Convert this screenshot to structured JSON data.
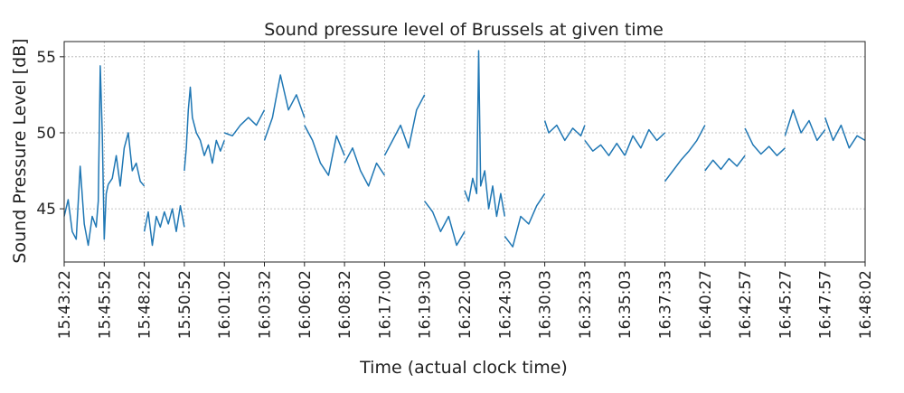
{
  "chart_data": {
    "type": "line",
    "title": "Sound pressure level of Brussels at given time",
    "xlabel": "Time (actual clock time)",
    "ylabel": "Sound Pressure Level [dB]",
    "ylim": [
      41.5,
      56
    ],
    "yticks": [
      45,
      50,
      55
    ],
    "grid": true,
    "line_color": "#1f77b4",
    "x_tick_labels": [
      "15:43:22",
      "15:45:52",
      "15:48:22",
      "15:50:52",
      "16:01:02",
      "16:03:32",
      "16:06:02",
      "16:08:32",
      "16:17:00",
      "16:19:30",
      "16:22:00",
      "16:24:30",
      "16:30:03",
      "16:32:33",
      "16:35:03",
      "16:37:33",
      "16:40:27",
      "16:42:57",
      "16:45:27",
      "16:47:57",
      "16:48:02"
    ],
    "segments": [
      {
        "x": [
          0.0,
          0.1,
          0.2,
          0.3,
          0.4,
          0.5,
          0.6,
          0.7,
          0.8,
          0.85,
          0.9,
          0.95,
          1.0,
          1.05,
          1.1
        ],
        "y": [
          44.5,
          45.6,
          43.5,
          43.0,
          47.8,
          44.0,
          42.6,
          44.5,
          43.8,
          45.5,
          54.4,
          50.0,
          43.0,
          46.0,
          46.6
        ]
      },
      {
        "x": [
          1.1,
          1.2,
          1.3,
          1.4,
          1.5,
          1.6,
          1.7,
          1.8,
          1.9,
          2.0
        ],
        "y": [
          46.6,
          47.0,
          48.5,
          46.5,
          49.0,
          50.0,
          47.5,
          48.0,
          46.8,
          46.5
        ]
      },
      {
        "x": [
          2.0,
          2.1,
          2.2,
          2.3,
          2.4,
          2.5,
          2.6,
          2.7,
          2.8,
          2.9,
          3.0
        ],
        "y": [
          43.5,
          44.8,
          42.6,
          44.5,
          43.8,
          44.8,
          44.0,
          45.0,
          43.5,
          45.2,
          43.8
        ]
      },
      {
        "x": [
          3.0,
          3.05,
          3.1,
          3.15,
          3.2,
          3.3,
          3.4,
          3.5,
          3.6,
          3.7,
          3.8,
          3.9,
          4.0
        ],
        "y": [
          47.5,
          49.0,
          51.5,
          53.0,
          51.0,
          50.0,
          49.5,
          48.5,
          49.2,
          48.0,
          49.5,
          48.8,
          49.5
        ]
      },
      {
        "x": [
          4.0,
          4.2,
          4.4,
          4.6,
          4.8,
          5.0
        ],
        "y": [
          50.0,
          49.8,
          50.5,
          51.0,
          50.5,
          51.5
        ]
      },
      {
        "x": [
          5.0,
          5.2,
          5.4,
          5.6,
          5.8,
          6.0
        ],
        "y": [
          49.5,
          51.0,
          53.8,
          51.5,
          52.5,
          51.0
        ]
      },
      {
        "x": [
          6.0,
          6.2,
          6.4,
          6.6,
          6.8,
          7.0
        ],
        "y": [
          50.5,
          49.5,
          48.0,
          47.2,
          49.8,
          48.5
        ]
      },
      {
        "x": [
          7.0,
          7.2,
          7.4,
          7.6,
          7.8,
          8.0
        ],
        "y": [
          48.0,
          49.0,
          47.5,
          46.5,
          48.0,
          47.2
        ]
      },
      {
        "x": [
          8.0,
          8.2,
          8.4,
          8.6,
          8.8,
          9.0
        ],
        "y": [
          48.5,
          49.5,
          50.5,
          49.0,
          51.5,
          52.5
        ]
      },
      {
        "x": [
          9.0,
          9.2,
          9.4,
          9.6,
          9.8,
          10.0
        ],
        "y": [
          45.5,
          44.8,
          43.5,
          44.5,
          42.6,
          43.5
        ]
      },
      {
        "x": [
          10.0,
          10.1,
          10.2,
          10.3,
          10.35,
          10.4,
          10.5,
          10.6,
          10.7,
          10.8,
          10.9,
          11.0
        ],
        "y": [
          46.2,
          45.5,
          47.0,
          46.0,
          55.4,
          46.5,
          47.5,
          45.0,
          46.5,
          44.5,
          46.0,
          44.5
        ]
      },
      {
        "x": [
          11.0,
          11.2,
          11.4,
          11.6,
          11.8,
          12.0
        ],
        "y": [
          43.2,
          42.5,
          44.5,
          44.0,
          45.2,
          46.0
        ]
      },
      {
        "x": [
          12.0,
          12.1,
          12.3,
          12.5,
          12.7,
          12.9,
          13.0
        ],
        "y": [
          50.8,
          50.0,
          50.5,
          49.5,
          50.3,
          49.8,
          50.5
        ]
      },
      {
        "x": [
          13.0,
          13.2,
          13.4,
          13.6,
          13.8,
          14.0
        ],
        "y": [
          49.5,
          48.8,
          49.2,
          48.5,
          49.3,
          48.5
        ]
      },
      {
        "x": [
          14.0,
          14.2,
          14.4,
          14.6,
          14.8,
          15.0
        ],
        "y": [
          48.5,
          49.8,
          49.0,
          50.2,
          49.5,
          50.0
        ]
      },
      {
        "x": [
          15.0,
          15.2,
          15.4,
          15.6,
          15.8,
          16.0
        ],
        "y": [
          46.8,
          47.5,
          48.2,
          48.8,
          49.5,
          50.5
        ]
      },
      {
        "x": [
          16.0,
          16.2,
          16.4,
          16.6,
          16.8,
          17.0
        ],
        "y": [
          47.5,
          48.2,
          47.6,
          48.3,
          47.8,
          48.5
        ]
      },
      {
        "x": [
          17.0,
          17.2,
          17.4,
          17.6,
          17.8,
          18.0
        ],
        "y": [
          50.3,
          49.2,
          48.6,
          49.1,
          48.5,
          49.0
        ]
      },
      {
        "x": [
          18.0,
          18.2,
          18.4,
          18.6,
          18.8,
          19.0
        ],
        "y": [
          49.8,
          51.5,
          50.0,
          50.8,
          49.5,
          50.2
        ]
      },
      {
        "x": [
          19.0,
          19.2,
          19.4,
          19.6,
          19.8,
          20.0
        ],
        "y": [
          51.0,
          49.5,
          50.5,
          49.0,
          49.8,
          49.5
        ]
      }
    ]
  }
}
